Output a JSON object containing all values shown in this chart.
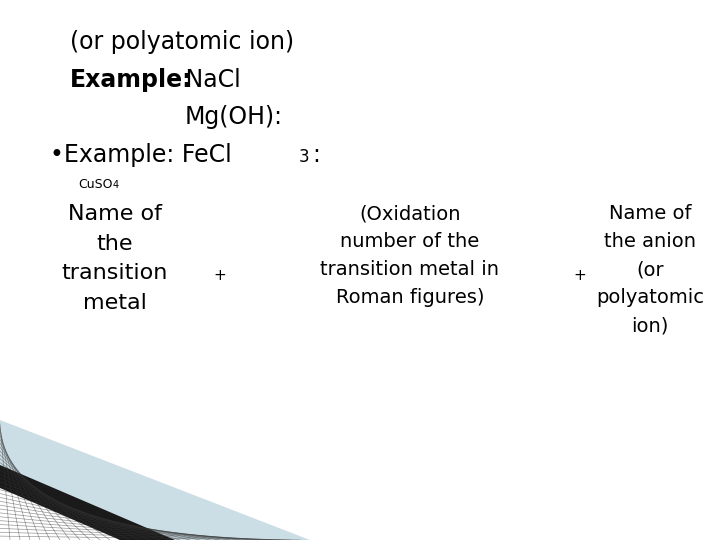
{
  "bg_color": "#ffffff",
  "text_color": "#000000",
  "line1": "(or polyatomic ion)",
  "line2_bold": "Example:",
  "line2_normal": " NaCl",
  "line3": "Mg(OH):",
  "line4_main": "•Example: FeCl",
  "line4_sub3": "3",
  "line4_colon": ":",
  "line5_cuso": "CuSO",
  "line5_sub4": "4",
  "box1_text": "Name of\nthe\ntransition\nmetal",
  "box2_text": "(Oxidation\nnumber of the\ntransition metal in\nRoman figures)",
  "box3_text": "Name of\nthe anion\n(or\npolyatomic\nion)",
  "decoration_color": "#ccdee5",
  "line_color": "#1a1a1a",
  "hatch_color": "#333333"
}
